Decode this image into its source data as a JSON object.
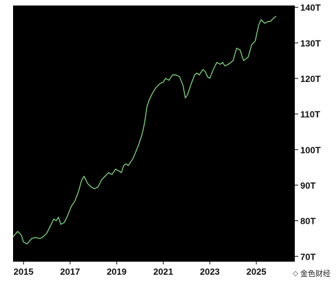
{
  "chart_data": {
    "type": "line",
    "title": "",
    "xlabel": "",
    "ylabel": "",
    "x_ticks": [
      "2015",
      "2017",
      "2019",
      "2021",
      "2023",
      "2025"
    ],
    "y_ticks": [
      "70T",
      "80T",
      "90T",
      "100T",
      "110T",
      "120T",
      "130T",
      "140T"
    ],
    "xlim": [
      2014.55,
      2026.65
    ],
    "ylim": [
      68.5,
      140.5
    ],
    "grid": false,
    "series": [
      {
        "color": "#7ed87e",
        "x": [
          2014.55,
          2014.75,
          2014.9,
          2015.0,
          2015.15,
          2015.35,
          2015.5,
          2015.7,
          2015.85,
          2016.0,
          2016.15,
          2016.3,
          2016.4,
          2016.5,
          2016.6,
          2016.75,
          2016.9,
          2017.05,
          2017.2,
          2017.35,
          2017.5,
          2017.6,
          2017.75,
          2017.9,
          2018.05,
          2018.2,
          2018.35,
          2018.5,
          2018.65,
          2018.8,
          2018.95,
          2019.1,
          2019.2,
          2019.3,
          2019.4,
          2019.5,
          2019.6,
          2019.7,
          2019.8,
          2019.95,
          2020.1,
          2020.2,
          2020.3,
          2020.4,
          2020.55,
          2020.7,
          2020.85,
          2021.0,
          2021.1,
          2021.25,
          2021.4,
          2021.55,
          2021.7,
          2021.85,
          2021.95,
          2022.05,
          2022.2,
          2022.35,
          2022.45,
          2022.55,
          2022.7,
          2022.8,
          2022.9,
          2023.0,
          2023.15,
          2023.3,
          2023.45,
          2023.55,
          2023.65,
          2023.8,
          2023.9,
          2024.0,
          2024.15,
          2024.3,
          2024.45,
          2024.55,
          2024.65,
          2024.8,
          2024.95,
          2025.1,
          2025.2,
          2025.35,
          2025.5,
          2025.6,
          2025.75,
          2025.85
        ],
        "y": [
          75.5,
          77.0,
          76.0,
          74.0,
          73.5,
          75.0,
          75.3,
          75.0,
          75.5,
          76.5,
          78.5,
          80.5,
          80.0,
          81.0,
          79.0,
          79.5,
          81.5,
          84.0,
          85.5,
          88.0,
          91.5,
          92.5,
          90.5,
          89.5,
          89.0,
          89.5,
          91.5,
          92.5,
          93.5,
          93.0,
          94.5,
          94.0,
          93.5,
          95.5,
          96.0,
          95.5,
          96.5,
          97.5,
          99.0,
          101.5,
          104.5,
          107.5,
          112.0,
          114.0,
          116.0,
          117.5,
          118.5,
          119.0,
          120.0,
          119.5,
          121.0,
          121.0,
          120.5,
          118.0,
          114.5,
          115.5,
          118.5,
          121.0,
          121.5,
          121.0,
          122.5,
          122.0,
          120.5,
          120.0,
          122.5,
          124.5,
          124.0,
          124.5,
          123.5,
          124.0,
          124.5,
          125.0,
          128.5,
          128.0,
          125.0,
          125.5,
          126.0,
          129.5,
          130.5,
          135.0,
          136.5,
          135.5,
          136.0,
          136.0,
          137.0,
          137.5
        ]
      }
    ]
  },
  "watermark": {
    "text": "金色财经",
    "logo_glyph": "◇"
  }
}
